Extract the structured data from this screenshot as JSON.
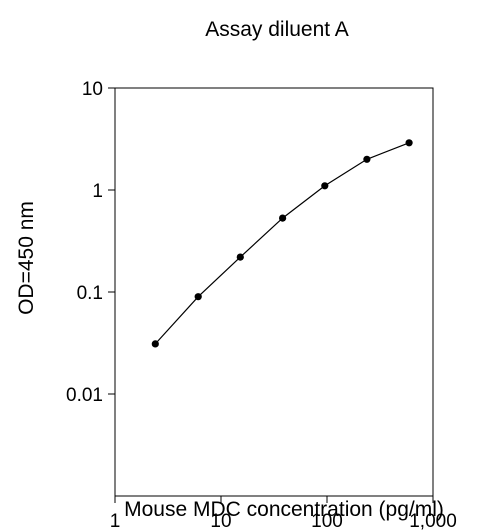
{
  "chart_data": {
    "type": "line",
    "title": "Assay diluent A",
    "xlabel": "Mouse MDC concentration (pg/ml)",
    "ylabel": "OD=450 nm",
    "x_scale": "log",
    "y_scale": "log",
    "xlim": [
      1,
      1000
    ],
    "ylim": [
      0.001,
      10
    ],
    "x_ticks": [
      {
        "value": 1,
        "label": "1"
      },
      {
        "value": 10,
        "label": "10"
      },
      {
        "value": 100,
        "label": "100"
      },
      {
        "value": 1000,
        "label": "1,000"
      }
    ],
    "y_ticks": [
      {
        "value": 10,
        "label": "10"
      },
      {
        "value": 1,
        "label": "1"
      },
      {
        "value": 0.1,
        "label": "0.1"
      },
      {
        "value": 0.01,
        "label": "0.01"
      }
    ],
    "grid": false,
    "legend": "none",
    "series": [
      {
        "x": [
          2.4,
          6.1,
          15.2,
          38.1,
          95.3,
          238,
          595
        ],
        "y": [
          0.031,
          0.09,
          0.22,
          0.53,
          1.1,
          2.0,
          2.9
        ]
      }
    ],
    "colors": {
      "line": "#000000",
      "marker": "#000000",
      "axes": "#000000"
    }
  }
}
